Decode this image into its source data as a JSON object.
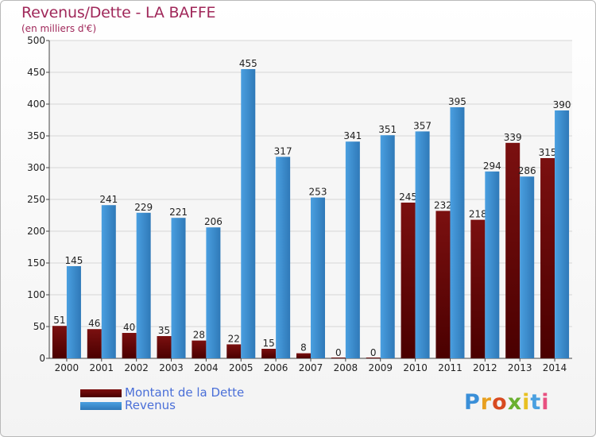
{
  "title": "Revenus/Dette - LA BAFFE",
  "subtitle": "(en milliers d'€)",
  "colors": {
    "dette": "#7b1010",
    "dette_dark": "#4a0000",
    "revenus": "#4a9fe0",
    "revenus_dark": "#2f79b8",
    "title": "#a0285a",
    "legend_text": "#4a6fd8"
  },
  "chart_data": {
    "type": "bar",
    "categories": [
      "2000",
      "2001",
      "2002",
      "2003",
      "2004",
      "2005",
      "2006",
      "2007",
      "2008",
      "2009",
      "2010",
      "2011",
      "2012",
      "2013",
      "2014"
    ],
    "series": [
      {
        "name": "Montant de la Dette",
        "values": [
          51,
          46,
          40,
          35,
          28,
          22,
          15,
          8,
          0,
          0,
          245,
          232,
          218,
          339,
          315
        ]
      },
      {
        "name": "Revenus",
        "values": [
          145,
          241,
          229,
          221,
          206,
          455,
          317,
          253,
          341,
          351,
          357,
          395,
          294,
          286,
          390
        ]
      }
    ],
    "ylim": [
      0,
      500
    ],
    "yticks": [
      0,
      50,
      100,
      150,
      200,
      250,
      300,
      350,
      400,
      450,
      500
    ],
    "grid": true,
    "legend": "bottom-left"
  },
  "legend": {
    "items": [
      {
        "label": "Montant de la Dette"
      },
      {
        "label": "Revenus"
      }
    ]
  },
  "logo": {
    "text": "Proxiti",
    "letter_colors": [
      "#3a8fd8",
      "#e8a020",
      "#d84a20",
      "#6ab030",
      "#e8c020",
      "#4aa0e0",
      "#e85080"
    ]
  }
}
